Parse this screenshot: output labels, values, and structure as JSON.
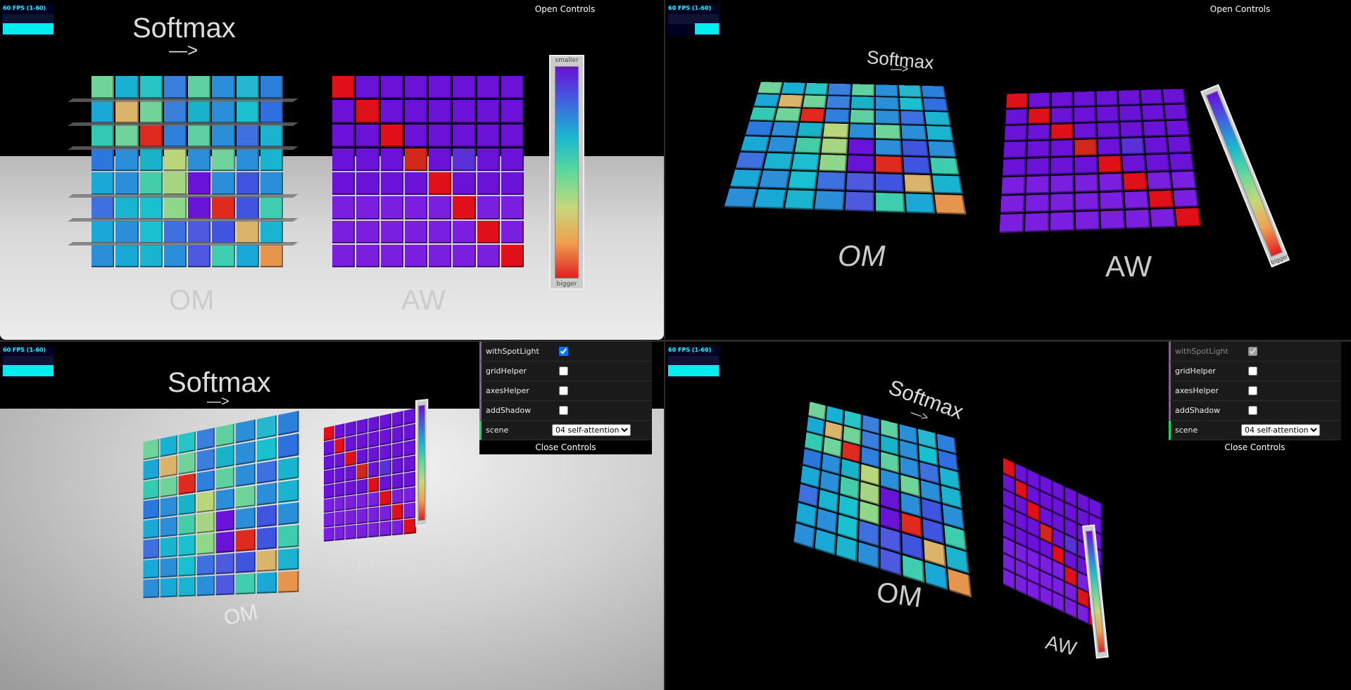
{
  "fps_label": "60 FPS (1-60)",
  "open_controls": "Open Controls",
  "close_controls": "Close Controls",
  "title": "Softmax",
  "arrow": "—>",
  "label_om": "OM",
  "label_aw": "AW",
  "colorbar": {
    "top": "smaller",
    "bottom": "bigger"
  },
  "controls": {
    "withSpotLight": {
      "label": "withSpotLight",
      "checked": true
    },
    "gridHelper": {
      "label": "gridHelper",
      "checked": false
    },
    "axesHelper": {
      "label": "axesHelper",
      "checked": false
    },
    "addShadow": {
      "label": "addShadow",
      "checked": false
    },
    "scene": {
      "label": "scene",
      "value": "04 self-attention"
    }
  },
  "colors": {
    "accent_selected": "#1ed36f",
    "accent_row": "#806787",
    "fps_cyan": "#00eeee"
  },
  "om_matrix": [
    [
      "#6fd39a",
      "#17b2d3",
      "#27c5c5",
      "#3a7fdb",
      "#5fd0a0",
      "#2a8fd8",
      "#27b6cf",
      "#2d7fdc"
    ],
    [
      "#1aa8d6",
      "#d9b46a",
      "#6fd39a",
      "#3a7fdb",
      "#18b3c8",
      "#2a8fd8",
      "#19c0d0",
      "#2f6fe0"
    ],
    [
      "#34c9b1",
      "#6fd39a",
      "#e02a20",
      "#2f7fdc",
      "#5fd0a0",
      "#2a8fd8",
      "#3f70e0",
      "#1ab4d0"
    ],
    [
      "#2a78de",
      "#2a8fd8",
      "#18b3c8",
      "#b9d67a",
      "#2a8fd8",
      "#6fd39a",
      "#2a8fd8",
      "#1ab4d0"
    ],
    [
      "#1aa8d6",
      "#2a8fd8",
      "#45cda7",
      "#a6d480",
      "#6a13d8",
      "#2a8fd8",
      "#3f55e0",
      "#2a8fd8"
    ],
    [
      "#3f70e0",
      "#1ab4d0",
      "#19c0d0",
      "#8fd88a",
      "#6a13d8",
      "#e02a20",
      "#3f55e0",
      "#3fcdb0"
    ],
    [
      "#1aa8d6",
      "#2a8fd8",
      "#19c0d0",
      "#3f70e0",
      "#4d5ae0",
      "#3f55e0",
      "#d9b46a",
      "#1ab4d0"
    ],
    [
      "#2a8fd8",
      "#1aa8d6",
      "#1ab4d0",
      "#2a8fd8",
      "#4d5ae0",
      "#3fcdb0",
      "#1aa8d6",
      "#e5954e"
    ]
  ],
  "aw_matrix": [
    [
      "#e0101a",
      "#6a12d8",
      "#6a12d8",
      "#6a12d8",
      "#6a12d8",
      "#6a12d8",
      "#6a12d8",
      "#6a12d8"
    ],
    [
      "#6a12d8",
      "#e0101a",
      "#6a12d8",
      "#6a12d8",
      "#6a12d8",
      "#6a12d8",
      "#6a12d8",
      "#6a12d8"
    ],
    [
      "#6a12d8",
      "#6a12d8",
      "#e0101a",
      "#6a12d8",
      "#6a12d8",
      "#6a12d8",
      "#6a12d8",
      "#6a12d8"
    ],
    [
      "#6a12d8",
      "#6a12d8",
      "#6a12d8",
      "#d0281a",
      "#6a12d8",
      "#5a30d8",
      "#6a12d8",
      "#6a12d8"
    ],
    [
      "#6a12d8",
      "#6a12d8",
      "#6a12d8",
      "#6a12d8",
      "#e0101a",
      "#6a12d8",
      "#6a12d8",
      "#6a12d8"
    ],
    [
      "#7a1ee0",
      "#7a1ee0",
      "#7a1ee0",
      "#7a1ee0",
      "#7a1ee0",
      "#e0101a",
      "#7a1ee0",
      "#7a1ee0"
    ],
    [
      "#7a1ee0",
      "#7a1ee0",
      "#7a1ee0",
      "#7a1ee0",
      "#7a1ee0",
      "#7a1ee0",
      "#e0101a",
      "#7a1ee0"
    ],
    [
      "#7a1ee0",
      "#7a1ee0",
      "#7a1ee0",
      "#7a1ee0",
      "#7a1ee0",
      "#7a1ee0",
      "#7a1ee0",
      "#e0101a"
    ]
  ]
}
